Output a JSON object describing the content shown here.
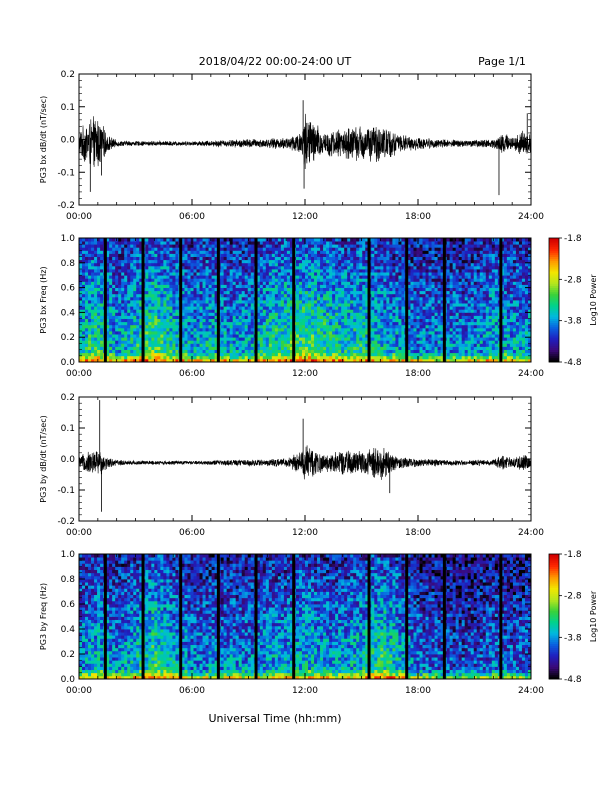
{
  "header": {
    "title": "2018/04/22  00:00-24:00 UT",
    "page": "Page 1/1"
  },
  "footer": {
    "xlabel": "Universal Time (hh:mm)"
  },
  "colors": {
    "trace": "#000000",
    "colormap": [
      "#000000",
      "#3b0a7a",
      "#1f1fbf",
      "#0a60e0",
      "#00b8e0",
      "#00d28c",
      "#3ad23a",
      "#b4e61e",
      "#f2e600",
      "#ff9a00",
      "#ff2a00",
      "#d20000"
    ]
  },
  "chart_data": [
    {
      "type": "line",
      "ylabel": "PG3 bx dB/dt (nT/sec)",
      "xlim": [
        0,
        24
      ],
      "ylim": [
        -0.2,
        0.2
      ],
      "xticks": [
        "00:00",
        "06:00",
        "12:00",
        "18:00",
        "24:00"
      ],
      "yticks": [
        "-0.2",
        "-0.1",
        "0.0",
        "0.1",
        "0.2"
      ],
      "envelope": {
        "hours": [
          0,
          0.5,
          1.0,
          1.5,
          2.0,
          3.0,
          4.0,
          5.0,
          6.0,
          7.0,
          8.0,
          9.0,
          10.0,
          11.0,
          11.8,
          12.0,
          12.5,
          13.0,
          14.0,
          15.0,
          16.0,
          16.5,
          17.0,
          18.0,
          19.0,
          20.0,
          21.0,
          22.0,
          22.5,
          23.0,
          23.5,
          24.0
        ],
        "amplitude": [
          0.04,
          0.08,
          0.09,
          0.03,
          0.01,
          0.008,
          0.008,
          0.008,
          0.007,
          0.01,
          0.012,
          0.015,
          0.015,
          0.02,
          0.04,
          0.11,
          0.07,
          0.04,
          0.05,
          0.06,
          0.06,
          0.05,
          0.03,
          0.02,
          0.015,
          0.012,
          0.012,
          0.015,
          0.04,
          0.02,
          0.04,
          0.03
        ]
      },
      "spikes": [
        {
          "hour": 0.6,
          "value": -0.16
        },
        {
          "hour": 1.2,
          "value": -0.11
        },
        {
          "hour": 11.9,
          "value": 0.12
        },
        {
          "hour": 11.95,
          "value": -0.15
        },
        {
          "hour": 22.3,
          "value": -0.17
        },
        {
          "hour": 23.8,
          "value": 0.08
        }
      ]
    },
    {
      "type": "heatmap",
      "ylabel": "PG3 bx Freq (Hz)",
      "xlim": [
        0,
        24
      ],
      "ylim": [
        0,
        1.0
      ],
      "xticks": [
        "00:00",
        "06:00",
        "12:00",
        "18:00",
        "24:00"
      ],
      "yticks": [
        "0.0",
        "0.2",
        "0.4",
        "0.6",
        "0.8",
        "1.0"
      ],
      "colorbar": {
        "label": "Log10 Power",
        "range": [
          -4.8,
          -1.8
        ],
        "ticks": [
          "-1.8",
          "-2.8",
          "-3.8",
          "-4.8"
        ]
      },
      "gap_hours": [
        1.4,
        3.4,
        5.4,
        7.4,
        9.4,
        11.4,
        15.4,
        17.4,
        19.4,
        22.4
      ],
      "activity": {
        "hours": [
          0,
          1,
          2,
          3,
          4,
          5,
          6,
          7,
          8,
          9,
          10,
          11,
          12,
          13,
          14,
          15,
          16,
          17,
          18,
          19,
          20,
          21,
          22,
          23,
          24
        ],
        "level": [
          0.45,
          0.55,
          0.4,
          0.5,
          0.6,
          0.5,
          0.4,
          0.45,
          0.4,
          0.4,
          0.5,
          0.55,
          0.6,
          0.55,
          0.5,
          0.5,
          0.45,
          0.4,
          0.35,
          0.35,
          0.35,
          0.35,
          0.45,
          0.4,
          0.4
        ]
      }
    },
    {
      "type": "line",
      "ylabel": "PG3 by dB/dt (nT/sec)",
      "xlim": [
        0,
        24
      ],
      "ylim": [
        -0.2,
        0.2
      ],
      "xticks": [
        "00:00",
        "06:00",
        "12:00",
        "18:00",
        "24:00"
      ],
      "yticks": [
        "-0.2",
        "-0.1",
        "0.0",
        "0.1",
        "0.2"
      ],
      "envelope": {
        "hours": [
          0,
          0.5,
          1.0,
          1.5,
          2.0,
          3.0,
          4.0,
          5.0,
          6.0,
          7.0,
          8.0,
          9.0,
          10.0,
          11.0,
          11.8,
          12.0,
          12.5,
          13.0,
          14.0,
          15.0,
          16.0,
          16.5,
          17.0,
          18.0,
          19.0,
          20.0,
          21.0,
          22.0,
          22.5,
          23.0,
          23.5,
          24.0
        ],
        "amplitude": [
          0.02,
          0.04,
          0.05,
          0.02,
          0.01,
          0.008,
          0.007,
          0.007,
          0.006,
          0.008,
          0.01,
          0.012,
          0.012,
          0.015,
          0.04,
          0.07,
          0.05,
          0.03,
          0.04,
          0.04,
          0.06,
          0.04,
          0.02,
          0.015,
          0.012,
          0.01,
          0.01,
          0.012,
          0.025,
          0.015,
          0.03,
          0.02
        ]
      },
      "spikes": [
        {
          "hour": 1.1,
          "value": 0.19
        },
        {
          "hour": 1.2,
          "value": -0.17
        },
        {
          "hour": 11.9,
          "value": 0.13
        },
        {
          "hour": 16.5,
          "value": -0.11
        }
      ]
    },
    {
      "type": "heatmap",
      "ylabel": "PG3 by Freq (Hz)",
      "xlim": [
        0,
        24
      ],
      "ylim": [
        0,
        1.0
      ],
      "xticks": [
        "00:00",
        "06:00",
        "12:00",
        "18:00",
        "24:00"
      ],
      "yticks": [
        "0.0",
        "0.2",
        "0.4",
        "0.6",
        "0.8",
        "1.0"
      ],
      "colorbar": {
        "label": "Log10 Power",
        "range": [
          -4.8,
          -1.8
        ],
        "ticks": [
          "-1.8",
          "-2.8",
          "-3.8",
          "-4.8"
        ]
      },
      "gap_hours": [
        1.4,
        3.4,
        5.4,
        7.4,
        9.4,
        11.4,
        15.4,
        17.4,
        19.4,
        22.4
      ],
      "activity": {
        "hours": [
          0,
          1,
          2,
          3,
          4,
          5,
          6,
          7,
          8,
          9,
          10,
          11,
          12,
          13,
          14,
          15,
          16,
          17,
          18,
          19,
          20,
          21,
          22,
          23,
          24
        ],
        "level": [
          0.35,
          0.45,
          0.35,
          0.45,
          0.55,
          0.45,
          0.35,
          0.35,
          0.35,
          0.35,
          0.4,
          0.4,
          0.45,
          0.4,
          0.4,
          0.45,
          0.55,
          0.45,
          0.3,
          0.28,
          0.25,
          0.25,
          0.3,
          0.28,
          0.28
        ]
      }
    }
  ]
}
